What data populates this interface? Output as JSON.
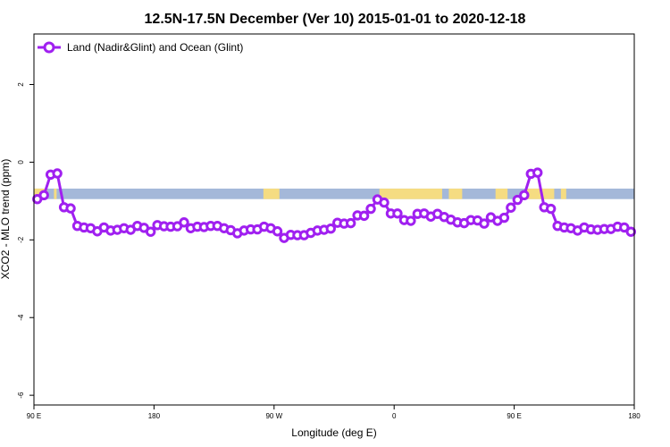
{
  "chart_data": {
    "type": "line",
    "title": "12.5N-17.5N December (Ver 10)   2015-01-01 to 2020-12-18",
    "xlabel": "Longitude (deg E)",
    "ylabel": "XCO2 - MLO trend (ppm)",
    "xlim": [
      90,
      540
    ],
    "ylim": [
      -6.25,
      3.3
    ],
    "x_ticks": [
      {
        "value": 90,
        "label": "90 E"
      },
      {
        "value": 180,
        "label": "180"
      },
      {
        "value": 270,
        "label": "90 W"
      },
      {
        "value": 360,
        "label": "0"
      },
      {
        "value": 450,
        "label": "90 E"
      },
      {
        "value": 540,
        "label": "180"
      }
    ],
    "y_ticks": [
      {
        "value": 2,
        "label": "2"
      },
      {
        "value": 0,
        "label": "0"
      },
      {
        "value": -2,
        "label": "-2"
      },
      {
        "value": -4,
        "label": "-4"
      },
      {
        "value": -6,
        "label": "-6"
      }
    ],
    "grid": false,
    "legend_position": "top-left",
    "colors": {
      "series": "#a020f0",
      "ocean": "#a4b8d9",
      "land": "#f5dc82"
    },
    "land_band": {
      "y_range": [
        -0.95,
        -0.68
      ],
      "segments_x": [
        [
          90,
          100
        ],
        [
          105,
          107
        ],
        [
          262,
          274
        ],
        [
          349,
          396
        ],
        [
          401,
          411
        ],
        [
          436,
          445
        ],
        [
          458,
          480
        ],
        [
          485,
          489
        ]
      ]
    },
    "series": [
      {
        "name": "Land (Nadir&Glint) and Ocean (Glint)",
        "x": [
          92.5,
          97.5,
          102.5,
          107.5,
          112.5,
          117.5,
          122.5,
          127.5,
          132.5,
          137.5,
          142.5,
          147.5,
          152.5,
          157.5,
          162.5,
          167.5,
          172.5,
          177.5,
          182.5,
          187.5,
          192.5,
          197.5,
          202.5,
          207.5,
          212.5,
          217.5,
          222.5,
          227.5,
          232.5,
          237.5,
          242.5,
          247.5,
          252.5,
          257.5,
          262.5,
          267.5,
          272.5,
          277.5,
          282.5,
          287.5,
          292.5,
          297.5,
          302.5,
          307.5,
          312.5,
          317.5,
          322.5,
          327.5,
          332.5,
          337.5,
          342.5,
          347.5,
          352.5,
          357.5,
          362.5,
          367.5,
          372.5,
          377.5,
          382.5,
          387.5,
          392.5,
          397.5,
          402.5,
          407.5,
          412.5,
          417.5,
          422.5,
          427.5,
          432.5,
          437.5,
          442.5,
          447.5,
          452.5,
          457.5,
          462.5,
          467.5,
          472.5,
          477.5,
          482.5,
          487.5,
          492.5,
          497.5,
          502.5,
          507.5,
          512.5,
          517.5,
          522.5,
          527.5,
          532.5,
          537.5
        ],
        "values": [
          -0.95,
          -0.85,
          -0.32,
          -0.29,
          -1.16,
          -1.19,
          -1.64,
          -1.68,
          -1.7,
          -1.78,
          -1.68,
          -1.76,
          -1.74,
          -1.7,
          -1.74,
          -1.64,
          -1.69,
          -1.79,
          -1.62,
          -1.65,
          -1.66,
          -1.65,
          -1.55,
          -1.7,
          -1.66,
          -1.67,
          -1.64,
          -1.64,
          -1.7,
          -1.75,
          -1.83,
          -1.76,
          -1.73,
          -1.73,
          -1.66,
          -1.7,
          -1.78,
          -1.95,
          -1.87,
          -1.88,
          -1.88,
          -1.82,
          -1.76,
          -1.74,
          -1.71,
          -1.56,
          -1.58,
          -1.57,
          -1.37,
          -1.38,
          -1.2,
          -0.96,
          -1.04,
          -1.32,
          -1.32,
          -1.49,
          -1.51,
          -1.33,
          -1.32,
          -1.4,
          -1.33,
          -1.41,
          -1.48,
          -1.55,
          -1.57,
          -1.49,
          -1.5,
          -1.58,
          -1.42,
          -1.51,
          -1.43,
          -1.17,
          -0.97,
          -0.85,
          -0.3,
          -0.27,
          -1.16,
          -1.2,
          -1.64,
          -1.68,
          -1.7,
          -1.76,
          -1.68,
          -1.73,
          -1.74,
          -1.72,
          -1.72,
          -1.66,
          -1.68,
          -1.79
        ]
      }
    ]
  }
}
